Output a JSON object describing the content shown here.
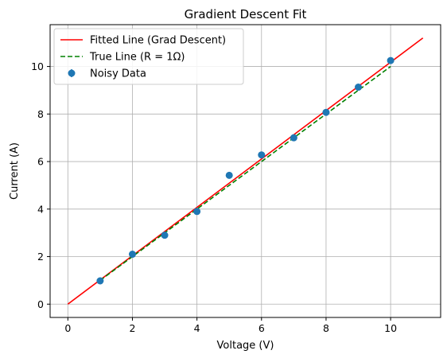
{
  "chart_data": {
    "type": "line",
    "title": "Gradient Descent Fit",
    "xlabel": "Voltage (V)",
    "ylabel": "Current (A)",
    "xlim": [
      -0.55,
      11.55
    ],
    "ylim": [
      -0.56,
      11.76
    ],
    "xticks": [
      0,
      2,
      4,
      6,
      8,
      10
    ],
    "yticks": [
      0,
      2,
      4,
      6,
      8,
      10
    ],
    "grid": true,
    "legend_position": "top-left",
    "series": [
      {
        "name": "Fitted Line (Grad Descent)",
        "kind": "line",
        "color": "#ff0000",
        "style": "solid",
        "x": [
          0,
          11
        ],
        "y": [
          0,
          11.2
        ]
      },
      {
        "name": "True Line (R = 1Ω)",
        "kind": "line",
        "color": "#008000",
        "style": "dashed",
        "x": [
          1,
          10
        ],
        "y": [
          1,
          10
        ]
      },
      {
        "name": "Noisy Data",
        "kind": "scatter_errorbar",
        "color": "#1f77b4",
        "x": [
          1,
          2,
          3,
          4,
          5,
          6,
          7,
          8,
          9,
          10
        ],
        "y": [
          0.98,
          2.1,
          2.9,
          3.9,
          5.42,
          6.28,
          7.0,
          8.07,
          9.13,
          10.25
        ],
        "yerr": 0.1
      }
    ]
  }
}
